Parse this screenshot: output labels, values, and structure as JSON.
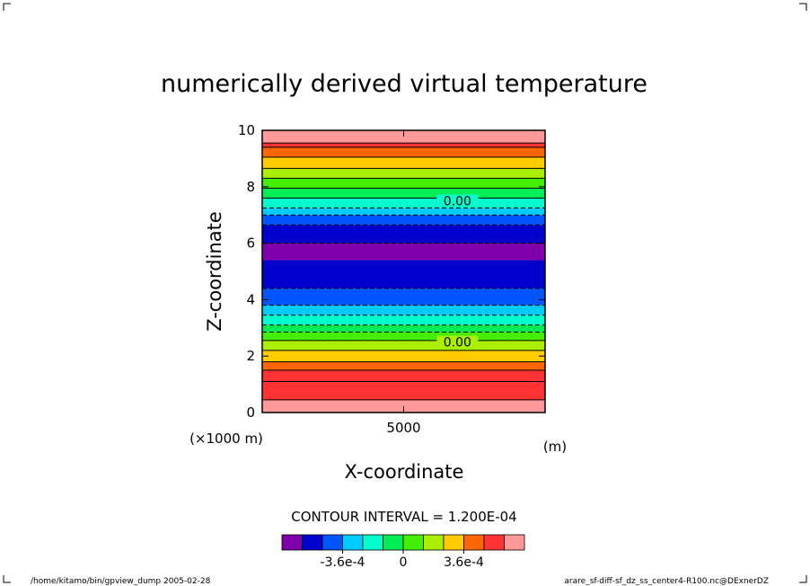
{
  "chart_data": {
    "type": "heatmap",
    "title": "numerically derived virtual temperature",
    "xlabel": "X-coordinate",
    "ylabel": "Z-coordinate",
    "x_unit": "(m)",
    "z_unit_label": "(×1000 m)",
    "xlim": [
      0,
      10000
    ],
    "ylim": [
      0,
      10
    ],
    "x_ticks": [
      {
        "value": 5000,
        "label": "5000"
      }
    ],
    "y_ticks": [
      {
        "value": 0,
        "label": "0"
      },
      {
        "value": 2,
        "label": "2"
      },
      {
        "value": 4,
        "label": "4"
      },
      {
        "value": 6,
        "label": "6"
      },
      {
        "value": 8,
        "label": "8"
      },
      {
        "value": 10,
        "label": "10"
      }
    ],
    "contour_interval_text": "CONTOUR INTERVAL = 1.200E-04",
    "contour_labels": [
      {
        "label": "0.00",
        "x": 6900,
        "z": 7.5
      },
      {
        "label": "0.00",
        "x": 6900,
        "z": 2.5
      }
    ],
    "bands": [
      {
        "z0": 0.0,
        "z1": 0.45,
        "color": "#ff9999"
      },
      {
        "z0": 0.45,
        "z1": 1.1,
        "color": "#ff3333"
      },
      {
        "z0": 1.1,
        "z1": 1.5,
        "color": "#ff3333"
      },
      {
        "z0": 1.5,
        "z1": 1.8,
        "color": "#ff6600"
      },
      {
        "z0": 1.8,
        "z1": 2.2,
        "color": "#ffcc00"
      },
      {
        "z0": 2.2,
        "z1": 2.55,
        "color": "#aaee00"
      },
      {
        "z0": 2.55,
        "z1": 2.85,
        "color": "#44ee00"
      },
      {
        "z0": 2.85,
        "z1": 3.1,
        "color": "#00ee55"
      },
      {
        "z0": 3.1,
        "z1": 3.45,
        "color": "#00ffcc"
      },
      {
        "z0": 3.45,
        "z1": 3.8,
        "color": "#00ccff"
      },
      {
        "z0": 3.8,
        "z1": 4.4,
        "color": "#0055ff"
      },
      {
        "z0": 4.4,
        "z1": 5.4,
        "color": "#0000cc"
      },
      {
        "z0": 5.4,
        "z1": 6.0,
        "color": "#7f00aa"
      },
      {
        "z0": 6.0,
        "z1": 6.65,
        "color": "#0000cc"
      },
      {
        "z0": 6.65,
        "z1": 7.0,
        "color": "#0055ff"
      },
      {
        "z0": 7.0,
        "z1": 7.25,
        "color": "#00ccff"
      },
      {
        "z0": 7.25,
        "z1": 7.6,
        "color": "#00ffcc"
      },
      {
        "z0": 7.6,
        "z1": 7.95,
        "color": "#00ee55"
      },
      {
        "z0": 7.95,
        "z1": 8.3,
        "color": "#44ee00"
      },
      {
        "z0": 8.3,
        "z1": 8.65,
        "color": "#aaee00"
      },
      {
        "z0": 8.65,
        "z1": 9.05,
        "color": "#ffcc00"
      },
      {
        "z0": 9.05,
        "z1": 9.4,
        "color": "#ff6600"
      },
      {
        "z0": 9.4,
        "z1": 9.55,
        "color": "#ff3333"
      },
      {
        "z0": 9.55,
        "z1": 10.0,
        "color": "#ff9999"
      }
    ],
    "contour_lines": [
      {
        "z": 0.45,
        "style": "solid"
      },
      {
        "z": 1.1,
        "style": "solid"
      },
      {
        "z": 1.5,
        "style": "solid"
      },
      {
        "z": 1.8,
        "style": "solid"
      },
      {
        "z": 2.2,
        "style": "solid"
      },
      {
        "z": 2.55,
        "style": "solid"
      },
      {
        "z": 2.85,
        "style": "dashed"
      },
      {
        "z": 3.1,
        "style": "dashed"
      },
      {
        "z": 3.45,
        "style": "dashed"
      },
      {
        "z": 3.8,
        "style": "dashed"
      },
      {
        "z": 4.4,
        "style": "dashed"
      },
      {
        "z": 6.0,
        "style": "dashed"
      },
      {
        "z": 6.65,
        "style": "dashed"
      },
      {
        "z": 7.0,
        "style": "dashed"
      },
      {
        "z": 7.25,
        "style": "dashed"
      },
      {
        "z": 7.6,
        "style": "solid"
      },
      {
        "z": 7.95,
        "style": "solid"
      },
      {
        "z": 8.3,
        "style": "solid"
      },
      {
        "z": 8.65,
        "style": "solid"
      },
      {
        "z": 9.05,
        "style": "solid"
      },
      {
        "z": 9.4,
        "style": "solid"
      },
      {
        "z": 9.55,
        "style": "solid"
      }
    ],
    "colorbar": {
      "colors": [
        "#7f00aa",
        "#0000cc",
        "#0055ff",
        "#00ccff",
        "#00ffcc",
        "#00ee55",
        "#44ee00",
        "#aaee00",
        "#ffcc00",
        "#ff6600",
        "#ff3333",
        "#ff9999"
      ],
      "labels": [
        {
          "label": "-3.6e-4",
          "index": 3
        },
        {
          "label": "0",
          "index": 6
        },
        {
          "label": "3.6e-4",
          "index": 9
        }
      ]
    }
  },
  "footer": {
    "left": "/home/kitamo/bin/gpview_dump  2005-02-28",
    "right": "arare_sf-diff-sf_dz_ss_center4-R100.nc@DExnerDZ"
  }
}
